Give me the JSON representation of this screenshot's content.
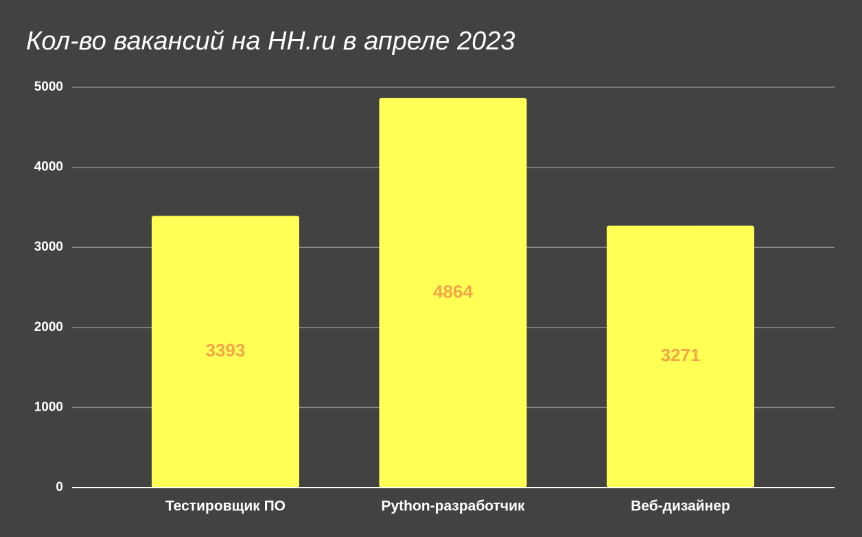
{
  "chart_data": {
    "type": "bar",
    "title": "Кол-во вакансий на HH.ru в апреле 2023",
    "categories": [
      "Тестировщик ПО",
      "Python-разработчик",
      "Веб-дизайнер"
    ],
    "values": [
      3393,
      4864,
      3271
    ],
    "color": "#ffff55",
    "label_color": "#f2a648",
    "ylim": [
      0,
      5000
    ],
    "yticks": [
      0,
      1000,
      2000,
      3000,
      4000,
      5000
    ],
    "grid": true
  }
}
